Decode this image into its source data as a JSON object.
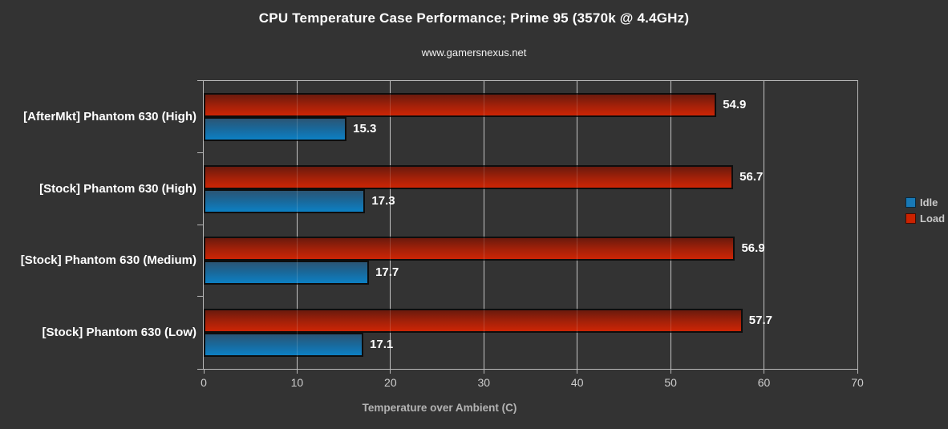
{
  "header": {
    "title": "CPU Temperature Case Performance; Prime 95 (3570k @ 4.4GHz)",
    "subtitle": "www.gamersnexus.net"
  },
  "chart_data": {
    "type": "bar",
    "orientation": "horizontal",
    "title": "CPU Temperature Case Performance; Prime 95 (3570k @ 4.4GHz)",
    "subtitle": "www.gamersnexus.net",
    "categories": [
      "[AfterMkt] Phantom 630 (High)",
      "[Stock] Phantom 630 (High)",
      "[Stock] Phantom 630 (Medium)",
      "[Stock] Phantom 630 (Low)"
    ],
    "series": [
      {
        "name": "Load",
        "values": [
          54.9,
          56.7,
          56.9,
          57.7
        ]
      },
      {
        "name": "Idle",
        "values": [
          15.3,
          17.3,
          17.7,
          17.1
        ]
      }
    ],
    "group_order_top_to_bottom": [
      "Load",
      "Idle"
    ],
    "xlabel": "Temperature over Ambient (C)",
    "xlim": [
      0,
      70
    ],
    "xticks": [
      0,
      10,
      20,
      30,
      40,
      50,
      60,
      70
    ],
    "grid": true,
    "legend": {
      "position": "right",
      "entries": [
        {
          "label": "Idle",
          "color": "#1879b6"
        },
        {
          "label": "Load",
          "color": "#cc2200"
        }
      ]
    }
  },
  "colors": {
    "background": "#333333",
    "plot_border": "#b8b8b8",
    "gridline": "#b8b8b8",
    "bar_border": "#0d0d0d",
    "load_gradient_top": "#6b1a0d",
    "load_gradient_bottom": "#cd2505",
    "idle_gradient_top": "#2b5574",
    "idle_gradient_bottom": "#0d80c4",
    "title_text": "#ffffff",
    "value_text": "#ffffff",
    "tick_text": "#cdcdcd",
    "axis_label_text": "#b3b3b3",
    "legend_text": "#c8c8c8"
  }
}
